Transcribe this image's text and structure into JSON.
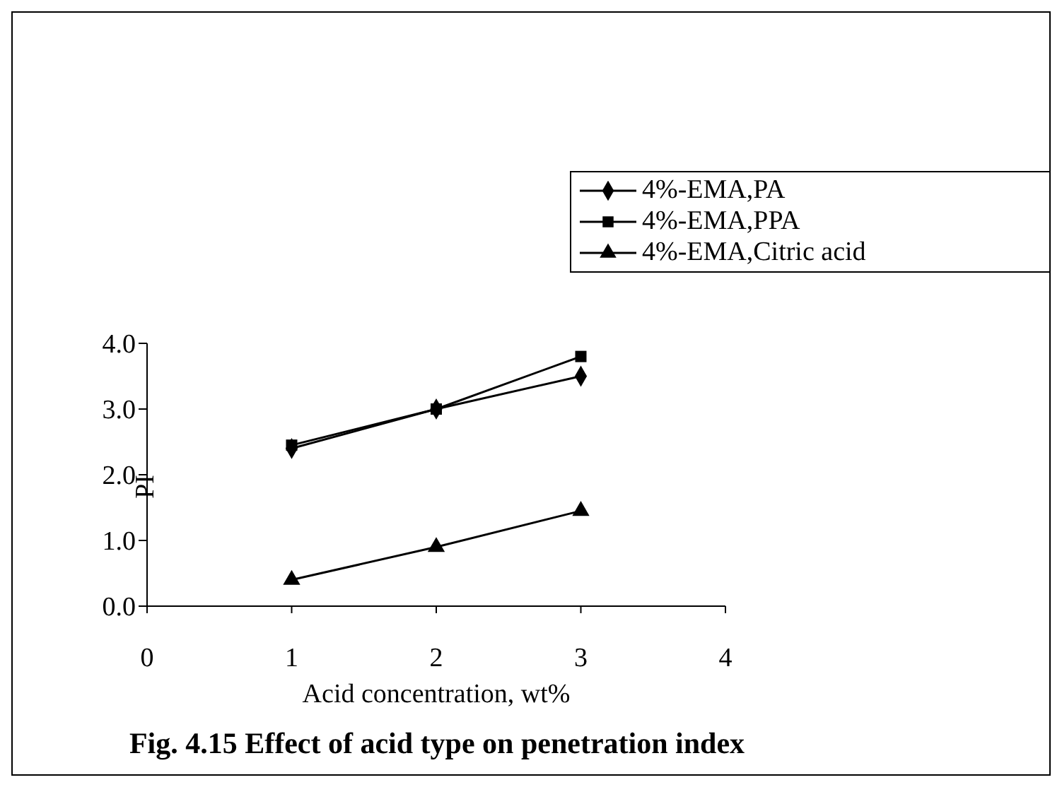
{
  "chart_data": {
    "type": "line",
    "title": "Fig. 4.15 Effect of acid type on penetration index",
    "xlabel": "Acid concentration, wt%",
    "ylabel": "PI",
    "x": [
      1,
      2,
      3
    ],
    "series": [
      {
        "name": "4%-EMA,PA",
        "color": "#000000",
        "values": [
          2.4,
          3.0,
          3.5
        ],
        "marker": "diamond"
      },
      {
        "name": "4%-EMA,PPA",
        "color": "#000000",
        "values": [
          2.45,
          3.0,
          3.8
        ],
        "marker": "square"
      },
      {
        "name": "4%-EMA,Citric acid",
        "color": "#000000",
        "values": [
          0.4,
          0.9,
          1.45
        ],
        "marker": "triangle"
      }
    ],
    "xlim": [
      0,
      4
    ],
    "xticks": [
      0,
      1,
      2,
      3,
      4
    ],
    "ylim": [
      0,
      4
    ],
    "yticks": [
      {
        "value": 0,
        "label": "0.0"
      },
      {
        "value": 1,
        "label": "1.0"
      },
      {
        "value": 2,
        "label": "2.0"
      },
      {
        "value": 3,
        "label": "3.0"
      },
      {
        "value": 4,
        "label": "4.0"
      }
    ],
    "grid": false,
    "legend": "top right",
    "line_style": "solid"
  }
}
